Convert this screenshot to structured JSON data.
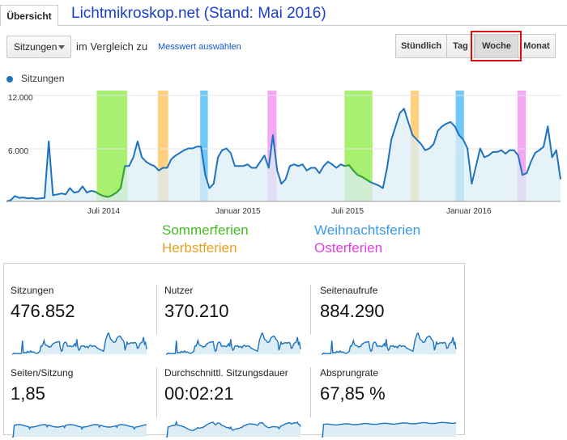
{
  "tabs": {
    "overview": "Übersicht"
  },
  "overlay_title": "Lichtmikroskop.net (Stand: Mai 2016)",
  "controls": {
    "metric": "Sitzungen",
    "compare_text": "im Vergleich zu",
    "select_metric_link": "Messwert auswählen"
  },
  "granularity": {
    "hourly": "Stündlich",
    "day": "Tag",
    "week": "Woche",
    "month": "Monat",
    "active": "Woche"
  },
  "legend": {
    "series": "Sitzungen"
  },
  "colors": {
    "line": "#1e73be",
    "area": "#dcedf6",
    "summer": "#a8f070",
    "autumn": "#ffd080",
    "christmas": "#70c8f8",
    "easter": "#f4a8f4",
    "green_line": "#3aa630"
  },
  "chart_data": {
    "type": "area",
    "ylim": [
      0,
      12000
    ],
    "yticks": [
      "12.000",
      "6.000"
    ],
    "xticks": [
      "Juli 2014",
      "Januar 2015",
      "Juli 2015",
      "Januar 2016"
    ],
    "start": "2014-03-16",
    "end": "2016-05-22",
    "series": [
      {
        "values": [
          0,
          150,
          600,
          400,
          450,
          350,
          400,
          300,
          350,
          400,
          6800,
          700,
          800,
          900,
          800,
          1500,
          1000,
          1100,
          1700,
          1000,
          1200,
          1100,
          800,
          600,
          500,
          700,
          1000,
          1500,
          4000,
          4000,
          5000,
          6800,
          5000,
          4500,
          4200,
          4000,
          3500,
          3800,
          3800,
          4800,
          5200,
          5500,
          5800,
          6000,
          6000,
          6200,
          6200,
          3000,
          1500,
          2000,
          5000,
          5800,
          6000,
          5500,
          4000,
          4000,
          4000,
          4200,
          3800,
          3800,
          4500,
          5200,
          3800,
          7500,
          3500,
          2000,
          2500,
          4000,
          4200,
          4000,
          4200,
          3500,
          3800,
          3800,
          3200,
          4000,
          4500,
          4200,
          3800,
          4200,
          4000,
          4100,
          3500,
          3000,
          2800,
          2500,
          2200,
          2000,
          1800,
          1500,
          3800,
          7000,
          8500,
          10000,
          10500,
          9000,
          7500,
          7000,
          6500,
          5800,
          6000,
          6500,
          8000,
          8500,
          8800,
          9000,
          8500,
          7500,
          7000,
          6000,
          2000,
          4000,
          6000,
          5000,
          5200,
          5600,
          5600,
          5800,
          5400,
          5800,
          5800,
          5200,
          3000,
          3200,
          4500,
          5500,
          5800,
          6200,
          8500,
          5000,
          5800,
          2500
        ]
      }
    ],
    "bands": [
      {
        "type": "summer",
        "from": "2014-07-24",
        "to": "2014-09-06"
      },
      {
        "type": "autumn",
        "from": "2014-10-20",
        "to": "2014-11-04"
      },
      {
        "type": "christmas",
        "from": "2014-12-20",
        "to": "2014-12-31"
      },
      {
        "type": "easter",
        "from": "2015-03-27",
        "to": "2015-04-09"
      },
      {
        "type": "summer",
        "from": "2015-07-16",
        "to": "2015-08-25"
      },
      {
        "type": "autumn",
        "from": "2015-10-19",
        "to": "2015-10-31"
      },
      {
        "type": "christmas",
        "from": "2015-12-23",
        "to": "2016-01-04"
      },
      {
        "type": "easter",
        "from": "2016-03-21",
        "to": "2016-04-02"
      }
    ]
  },
  "holiday_legend": {
    "summer": "Sommerferien",
    "autumn": "Herbstferien",
    "christmas": "Weihnachtsferien",
    "easter": "Osterferien"
  },
  "scorecards": [
    {
      "label": "Sitzungen",
      "value": "476.852"
    },
    {
      "label": "Nutzer",
      "value": "370.210"
    },
    {
      "label": "Seitenaufrufe",
      "value": "884.290"
    },
    {
      "label": "Seiten/Sitzung",
      "value": "1,85"
    },
    {
      "label": "Durchschnittl. Sitzungsdauer",
      "value": "00:02:21"
    },
    {
      "label": "Absprungrate",
      "value": "67,85 %"
    }
  ]
}
